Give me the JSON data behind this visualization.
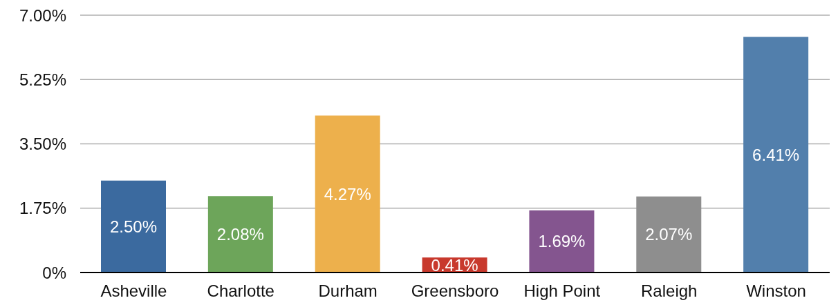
{
  "chart_data": {
    "type": "bar",
    "categories": [
      "Asheville",
      "Charlotte",
      "Durham",
      "Greensboro",
      "High Point",
      "Raleigh",
      "Winston"
    ],
    "values": [
      2.5,
      2.08,
      4.27,
      0.41,
      1.69,
      2.07,
      6.41
    ],
    "value_labels": [
      "2.50%",
      "2.08%",
      "4.27%",
      "0.41%",
      "1.69%",
      "2.07%",
      "6.41%"
    ],
    "colors": [
      "#3b6a9f",
      "#6da55a",
      "#edb04c",
      "#c8392d",
      "#84558f",
      "#8e8e8e",
      "#527fac"
    ],
    "ylim": [
      0,
      7
    ],
    "yticks": [
      {
        "value": 0,
        "label": "0%"
      },
      {
        "value": 1.75,
        "label": "1.75%"
      },
      {
        "value": 3.5,
        "label": "3.50%"
      },
      {
        "value": 5.25,
        "label": "5.25%"
      },
      {
        "value": 7,
        "label": "7.00%"
      }
    ],
    "grid": "y"
  }
}
